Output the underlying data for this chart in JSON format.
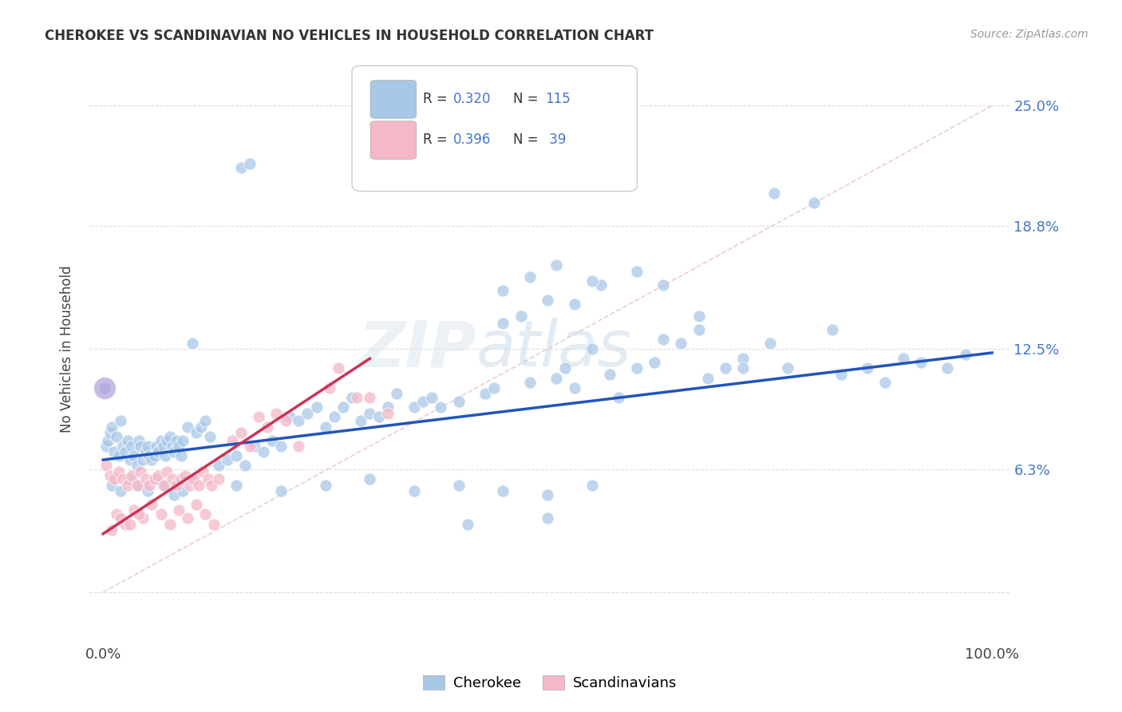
{
  "title": "CHEROKEE VS SCANDINAVIAN NO VEHICLES IN HOUSEHOLD CORRELATION CHART",
  "source": "Source: ZipAtlas.com",
  "ylabel": "No Vehicles in Household",
  "bg_color": "#ffffff",
  "watermark_zip": "ZIP",
  "watermark_atlas": "atlas",
  "cherokee_color": "#a8c8e8",
  "scandinavian_color": "#f5b8c8",
  "trendline_cherokee_color": "#2255bb",
  "trendline_scandinavian_color": "#cc3355",
  "diagonal_color": "#cccccc",
  "grid_color": "#dddddd",
  "ytick_color": "#4477cc",
  "xtick_color": "#444444",
  "legend_R1": "R = 0.320",
  "legend_N1": "N = 115",
  "legend_R2": "R = 0.396",
  "legend_N2": "N =  39",
  "cherokee_x": [
    0.3,
    0.5,
    0.8,
    1.0,
    1.2,
    1.5,
    1.8,
    2.0,
    2.2,
    2.5,
    2.8,
    3.0,
    3.2,
    3.5,
    3.8,
    4.0,
    4.2,
    4.5,
    4.8,
    5.0,
    5.2,
    5.5,
    5.8,
    6.0,
    6.2,
    6.5,
    6.8,
    7.0,
    7.2,
    7.5,
    7.8,
    8.0,
    8.2,
    8.5,
    8.8,
    9.0,
    9.5,
    10.0,
    10.5,
    11.0,
    11.5,
    12.0,
    13.0,
    14.0,
    15.0,
    16.0,
    17.0,
    18.0,
    19.0,
    20.0,
    21.0,
    22.0,
    23.0,
    24.0,
    25.0,
    26.0,
    27.0,
    28.0,
    29.0,
    30.0,
    31.0,
    32.0,
    33.0,
    35.0,
    36.0,
    37.0,
    38.0,
    40.0,
    41.0,
    43.0,
    44.0,
    45.0,
    47.0,
    48.0,
    50.0,
    51.0,
    52.0,
    53.0,
    55.0,
    56.0,
    57.0,
    58.0,
    60.0,
    62.0,
    63.0,
    65.0,
    67.0,
    68.0,
    70.0,
    72.0,
    75.0,
    77.0,
    80.0,
    83.0,
    86.0,
    88.0,
    90.0,
    92.0,
    95.0,
    97.0,
    15.5,
    16.5,
    75.5,
    82.0,
    0.2,
    55.0,
    45.0,
    48.0,
    50.0,
    51.0,
    53.0,
    60.0,
    63.0,
    67.0,
    72.0
  ],
  "cherokee_y": [
    7.5,
    7.8,
    8.2,
    8.5,
    7.2,
    8.0,
    7.0,
    8.8,
    7.5,
    7.2,
    7.8,
    6.8,
    7.5,
    7.0,
    6.5,
    7.8,
    7.5,
    6.8,
    7.2,
    7.5,
    7.0,
    6.8,
    7.0,
    7.5,
    7.2,
    7.8,
    7.5,
    7.0,
    7.8,
    8.0,
    7.5,
    7.2,
    7.8,
    7.5,
    7.0,
    7.8,
    8.5,
    12.8,
    8.2,
    8.5,
    8.8,
    8.0,
    6.5,
    6.8,
    7.0,
    6.5,
    7.5,
    7.2,
    7.8,
    7.5,
    9.0,
    8.8,
    9.2,
    9.5,
    8.5,
    9.0,
    9.5,
    10.0,
    8.8,
    9.2,
    9.0,
    9.5,
    10.2,
    9.5,
    9.8,
    10.0,
    9.5,
    9.8,
    3.5,
    10.2,
    10.5,
    13.8,
    14.2,
    10.8,
    3.8,
    11.0,
    11.5,
    10.5,
    12.5,
    15.8,
    11.2,
    10.0,
    11.5,
    11.8,
    13.0,
    12.8,
    13.5,
    11.0,
    11.5,
    12.0,
    12.8,
    11.5,
    20.0,
    11.2,
    11.5,
    10.8,
    12.0,
    11.8,
    11.5,
    12.2,
    21.8,
    22.0,
    20.5,
    13.5,
    10.5,
    16.0,
    15.5,
    16.2,
    15.0,
    16.8,
    14.8,
    16.5,
    15.8,
    14.2,
    11.5
  ],
  "scandinavian_x": [
    0.3,
    0.8,
    1.2,
    1.8,
    2.2,
    2.8,
    3.2,
    3.8,
    4.2,
    4.8,
    5.2,
    5.8,
    6.2,
    6.8,
    7.2,
    7.8,
    8.2,
    8.8,
    9.2,
    9.8,
    10.2,
    10.8,
    11.2,
    11.8,
    12.2,
    13.0,
    14.5,
    15.5,
    16.5,
    17.5,
    18.5,
    19.5,
    20.5,
    22.0,
    25.5,
    26.5,
    28.5,
    30.0,
    32.0
  ],
  "scandinavian_y": [
    6.5,
    6.0,
    5.8,
    6.2,
    5.8,
    5.5,
    6.0,
    5.5,
    6.2,
    5.8,
    5.5,
    5.8,
    6.0,
    5.5,
    6.2,
    5.8,
    5.5,
    5.8,
    6.0,
    5.5,
    5.8,
    5.5,
    6.2,
    5.8,
    5.5,
    5.8,
    7.8,
    8.2,
    7.5,
    9.0,
    8.5,
    9.2,
    8.8,
    7.5,
    10.5,
    11.5,
    10.0,
    10.0,
    9.2
  ]
}
